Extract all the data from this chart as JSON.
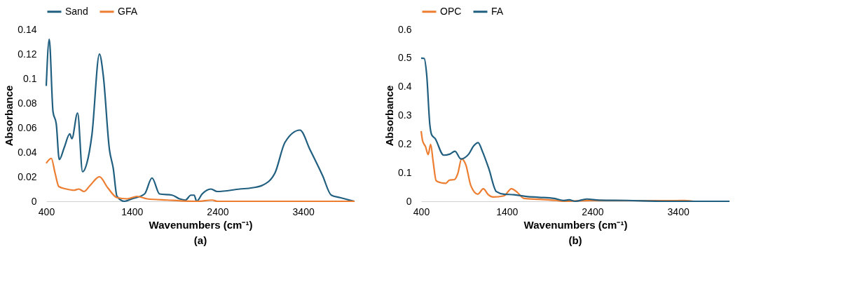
{
  "chart_data": [
    {
      "type": "line",
      "xlabel": "Wavenumbers (cm⁻¹)",
      "ylabel": "Absorbance",
      "annotations": [
        "(a)"
      ],
      "legend": "top",
      "grid": false,
      "xlim": [
        400,
        4000
      ],
      "xticks": [
        400,
        1400,
        2400,
        3400
      ],
      "ylim": [
        0,
        0.14
      ],
      "yticks": [
        0,
        0.02,
        0.04,
        0.06,
        0.08,
        0.1,
        0.12,
        0.14
      ],
      "series": [
        {
          "name": "Sand",
          "color": "#205f80",
          "x": [
            400,
            435,
            479,
            517,
            552,
            611,
            675,
            699,
            766,
            824,
            874,
            933,
            1021,
            1065,
            1138,
            1182,
            1226,
            1313,
            1401,
            1548,
            1635,
            1723,
            1870,
            1957,
            2025,
            2089,
            2127,
            2156,
            2221,
            2323,
            2396,
            2660,
            2806,
            2923,
            3070,
            3187,
            3362,
            3480,
            3626,
            3728,
            3831,
            4000
          ],
          "values": [
            0.094,
            0.132,
            0.073,
            0.063,
            0.034,
            0.044,
            0.055,
            0.051,
            0.072,
            0.024,
            0.031,
            0.054,
            0.12,
            0.103,
            0.042,
            0.027,
            0.004,
            0.0,
            0.002,
            0.006,
            0.019,
            0.006,
            0.005,
            0.002,
            0.001,
            0.005,
            0.005,
            0.0,
            0.006,
            0.01,
            0.008,
            0.01,
            0.011,
            0.013,
            0.023,
            0.048,
            0.058,
            0.042,
            0.021,
            0.005,
            0.003,
            0.0
          ]
        },
        {
          "name": "GFA",
          "color": "#ed7d31",
          "x": [
            400,
            459,
            503,
            547,
            635,
            723,
            781,
            840,
            913,
            1021,
            1118,
            1226,
            1343,
            1460,
            1577,
            1811,
            2162,
            2338,
            2396,
            4000
          ],
          "values": [
            0.031,
            0.035,
            0.023,
            0.012,
            0.01,
            0.009,
            0.01,
            0.008,
            0.013,
            0.02,
            0.011,
            0.003,
            0.002,
            0.004,
            0.002,
            0.001,
            0.0,
            0.001,
            0.0,
            0.0
          ]
        }
      ]
    },
    {
      "type": "line",
      "xlabel": "Wavenumbers (cm⁻¹)",
      "ylabel": "Absorbance",
      "annotations": [
        "(b)"
      ],
      "legend": "top",
      "grid": false,
      "xlim": [
        400,
        4000
      ],
      "xticks": [
        400,
        1400,
        2400,
        3400
      ],
      "ylim": [
        0,
        0.6
      ],
      "yticks": [
        0,
        0.1,
        0.2,
        0.3,
        0.4,
        0.5,
        0.6
      ],
      "series": [
        {
          "name": "OPC",
          "color": "#ed7d31",
          "x": [
            400,
            417,
            452,
            482,
            511,
            540,
            575,
            628,
            687,
            731,
            790,
            828,
            872,
            922,
            980,
            1062,
            1126,
            1184,
            1243,
            1366,
            1454,
            1527,
            1600,
            1776,
            1981,
            2069,
            2361,
            3240,
            3474,
            3591,
            4000
          ],
          "values": [
            0.245,
            0.211,
            0.19,
            0.163,
            0.199,
            0.139,
            0.072,
            0.065,
            0.063,
            0.074,
            0.076,
            0.097,
            0.148,
            0.127,
            0.055,
            0.025,
            0.044,
            0.023,
            0.015,
            0.019,
            0.044,
            0.03,
            0.01,
            0.007,
            0.003,
            0.0,
            0.003,
            0.002,
            0.003,
            0.0,
            0.0
          ]
        },
        {
          "name": "FA",
          "color": "#205f80",
          "x": [
            400,
            435,
            464,
            502,
            523,
            561,
            663,
            737,
            795,
            863,
            956,
            1015,
            1065,
            1117,
            1190,
            1278,
            1366,
            1483,
            1630,
            1776,
            1952,
            2069,
            2127,
            2200,
            2332,
            2478,
            2800,
            3240,
            4000
          ],
          "values": [
            0.5,
            0.499,
            0.444,
            0.266,
            0.232,
            0.22,
            0.161,
            0.165,
            0.175,
            0.148,
            0.165,
            0.194,
            0.205,
            0.173,
            0.114,
            0.034,
            0.025,
            0.023,
            0.017,
            0.014,
            0.01,
            0.003,
            0.005,
            0.0,
            0.008,
            0.004,
            0.003,
            0.0,
            0.0
          ]
        }
      ]
    }
  ]
}
